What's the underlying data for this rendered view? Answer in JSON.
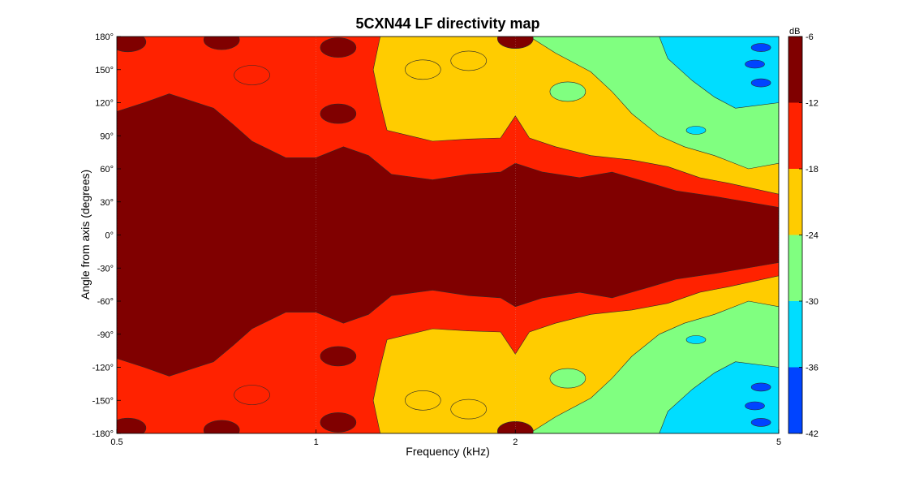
{
  "chart_data": {
    "type": "heatmap",
    "title": "5CXN44 LF directivity map",
    "xlabel": "Frequency (kHz)",
    "ylabel": "Angle from axis (degrees)",
    "x_scale": "log",
    "xlim": [
      0.5,
      5
    ],
    "ylim": [
      -180,
      180
    ],
    "x_ticks": [
      {
        "value": 0.5,
        "label": "0.5"
      },
      {
        "value": 1,
        "label": "1"
      },
      {
        "value": 2,
        "label": "2"
      },
      {
        "value": 5,
        "label": "5"
      }
    ],
    "y_ticks": [
      {
        "value": 180,
        "label": "180°"
      },
      {
        "value": 150,
        "label": "150°"
      },
      {
        "value": 120,
        "label": "120°"
      },
      {
        "value": 90,
        "label": "90°"
      },
      {
        "value": 60,
        "label": "60°"
      },
      {
        "value": 30,
        "label": "30°"
      },
      {
        "value": 0,
        "label": "0°"
      },
      {
        "value": -30,
        "label": "-30°"
      },
      {
        "value": -60,
        "label": "-60°"
      },
      {
        "value": -90,
        "label": "-90°"
      },
      {
        "value": -120,
        "label": "-120°"
      },
      {
        "value": -150,
        "label": "-150°"
      },
      {
        "value": -180,
        "label": "-180°"
      }
    ],
    "colorbar": {
      "unit_label": "dB",
      "range": [
        -42,
        -6
      ],
      "ticks": [
        {
          "value": -6,
          "label": "-6"
        },
        {
          "value": -12,
          "label": "-12"
        },
        {
          "value": -18,
          "label": "-18"
        },
        {
          "value": -24,
          "label": "-24"
        },
        {
          "value": -30,
          "label": "-30"
        },
        {
          "value": -36,
          "label": "-36"
        },
        {
          "value": -42,
          "label": "-42"
        }
      ]
    },
    "contour_levels": [
      {
        "min": -6,
        "color": "#800000"
      },
      {
        "min": -12,
        "color": "#ff2200"
      },
      {
        "min": -18,
        "color": "#ffcc00"
      },
      {
        "min": -24,
        "color": "#80ff80"
      },
      {
        "min": -30,
        "color": "#00ddff"
      },
      {
        "min": -36,
        "color": "#0044ff"
      },
      {
        "min": -42,
        "color": "#00008b"
      }
    ],
    "series": [
      {
        "level": -6,
        "color": "#800000",
        "boundary_angle_vs_frequency": [
          [
            0.5,
            112
          ],
          [
            0.55,
            120
          ],
          [
            0.6,
            128
          ],
          [
            0.7,
            115
          ],
          [
            0.75,
            100
          ],
          [
            0.8,
            85
          ],
          [
            0.9,
            70
          ],
          [
            1.0,
            70
          ],
          [
            1.1,
            80
          ],
          [
            1.2,
            72
          ],
          [
            1.3,
            55
          ],
          [
            1.5,
            50
          ],
          [
            1.7,
            55
          ],
          [
            1.9,
            57
          ],
          [
            2.0,
            65
          ],
          [
            2.2,
            57
          ],
          [
            2.5,
            52
          ],
          [
            2.8,
            57
          ],
          [
            3.2,
            47
          ],
          [
            3.5,
            40
          ],
          [
            4.0,
            35
          ],
          [
            5.0,
            25
          ]
        ],
        "top_blobs": [
          [
            0.52,
            175
          ],
          [
            0.72,
            177
          ],
          [
            1.08,
            170
          ],
          [
            1.08,
            110
          ],
          [
            2.0,
            178
          ]
        ]
      },
      {
        "level": -12,
        "color": "#ff2200",
        "boundary_angle_vs_frequency": [
          [
            1.25,
            180
          ],
          [
            1.22,
            150
          ],
          [
            1.25,
            120
          ],
          [
            1.28,
            95
          ],
          [
            1.5,
            85
          ],
          [
            1.7,
            87
          ],
          [
            1.9,
            88
          ],
          [
            2.0,
            108
          ],
          [
            2.1,
            88
          ],
          [
            2.3,
            80
          ],
          [
            2.6,
            72
          ],
          [
            3.0,
            68
          ],
          [
            3.4,
            62
          ],
          [
            3.8,
            52
          ],
          [
            4.2,
            47
          ],
          [
            5.0,
            37
          ]
        ],
        "top_blobs": [
          [
            0.8,
            145
          ]
        ]
      },
      {
        "level": -18,
        "color": "#ffcc00",
        "boundary_angle_vs_frequency": [
          [
            2.1,
            180
          ],
          [
            2.3,
            165
          ],
          [
            2.6,
            148
          ],
          [
            2.8,
            130
          ],
          [
            3.0,
            110
          ],
          [
            3.3,
            90
          ],
          [
            3.6,
            80
          ],
          [
            4.0,
            72
          ],
          [
            4.5,
            60
          ],
          [
            5.0,
            65
          ]
        ],
        "top_blobs": [
          [
            1.45,
            150
          ],
          [
            1.7,
            158
          ]
        ]
      },
      {
        "level": -24,
        "color": "#80ff80",
        "boundary_angle_vs_frequency": [
          [
            3.3,
            180
          ],
          [
            3.4,
            160
          ],
          [
            3.7,
            140
          ],
          [
            4.0,
            125
          ],
          [
            4.3,
            115
          ],
          [
            5.0,
            120
          ]
        ],
        "top_blobs": [
          [
            2.4,
            130
          ]
        ]
      },
      {
        "level": -30,
        "color": "#00ddff",
        "boundary_angle_vs_frequency": [],
        "top_blobs": [
          [
            3.75,
            95
          ]
        ]
      },
      {
        "level": -36,
        "color": "#0044ff",
        "boundary_angle_vs_frequency": [],
        "top_blobs": [
          [
            4.7,
            170
          ],
          [
            4.6,
            155
          ],
          [
            4.7,
            138
          ]
        ]
      }
    ]
  }
}
